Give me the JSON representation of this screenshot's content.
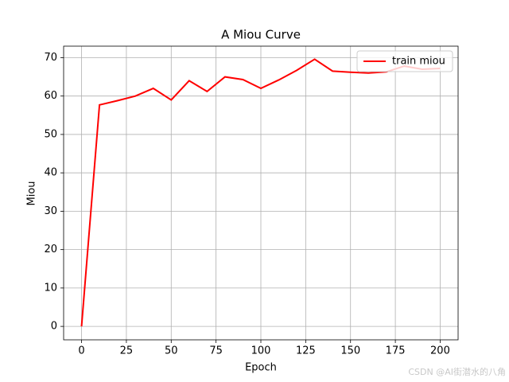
{
  "chart_data": {
    "type": "line",
    "title": "A Miou Curve",
    "x_label": "Epoch",
    "y_label": "Miou",
    "x": [
      0,
      10,
      20,
      30,
      40,
      50,
      60,
      70,
      80,
      90,
      100,
      110,
      120,
      130,
      140,
      150,
      160,
      170,
      180,
      190,
      200
    ],
    "series": [
      {
        "name": "train miou",
        "color": "#ff0000",
        "values": [
          0,
          57.7,
          58.8,
          60,
          62,
          59,
          64,
          61.2,
          65,
          64.3,
          62,
          64.2,
          66.7,
          69.6,
          66.5,
          66.2,
          66,
          66.3,
          67.8,
          67,
          67.2
        ]
      }
    ],
    "xlim": [
      -10,
      210
    ],
    "xticks": [
      0,
      25,
      50,
      75,
      100,
      125,
      150,
      175,
      200
    ],
    "ylim": [
      -3.5,
      73
    ],
    "yticks": [
      0,
      10,
      20,
      30,
      40,
      50,
      60,
      70
    ],
    "grid": true,
    "legend": "upper right",
    "watermark": "CSDN @AI街潜水的八角"
  }
}
